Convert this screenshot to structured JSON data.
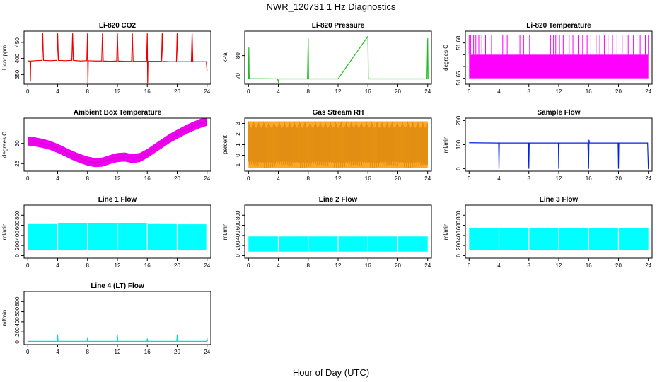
{
  "figure": {
    "title": "NWR_120731  1 Hz Diagnostics",
    "xlabel": "Hour of Day (UTC)"
  },
  "chart_data": [
    {
      "type": "line",
      "title": "Li-820 CO2",
      "ylabel": "Licor ppm",
      "color": "#ee0000",
      "xlim": [
        -0.5,
        24.5
      ],
      "ylim": [
        320,
        485
      ],
      "xticks": [
        0,
        4,
        8,
        12,
        16,
        20,
        24
      ],
      "yticks": [
        350,
        400,
        450
      ],
      "ytick_labels": [
        "350",
        "400",
        "450"
      ],
      "series": [
        {
          "x": [
            0,
            0.3,
            0.35,
            0.4,
            1,
            1.9,
            2,
            2.1,
            3,
            3.9,
            4,
            4.1,
            5,
            5.9,
            6,
            6.1,
            7,
            7.9,
            8,
            8.05,
            8.1,
            9,
            9.9,
            10,
            10.1,
            11,
            11.9,
            12,
            12.1,
            13,
            13.9,
            14,
            14.1,
            15,
            15.9,
            16,
            16.05,
            16.1,
            17,
            17.9,
            18,
            18.1,
            19,
            19.9,
            20,
            20.1,
            21,
            21.9,
            22,
            22.1,
            23,
            23.9,
            24
          ],
          "y": [
            392,
            392,
            328,
            392,
            393,
            394,
            478,
            394,
            393,
            394,
            478,
            394,
            393,
            394,
            478,
            394,
            392,
            393,
            478,
            322,
            393,
            392,
            392,
            478,
            392,
            391,
            392,
            478,
            392,
            391,
            391,
            478,
            391,
            391,
            391,
            478,
            322,
            391,
            391,
            391,
            478,
            391,
            390,
            390,
            478,
            390,
            390,
            390,
            478,
            390,
            390,
            390,
            362
          ]
        }
      ]
    },
    {
      "type": "line",
      "title": "Li-820 Pressure",
      "ylabel": "kPa",
      "color": "#22bb22",
      "xlim": [
        -0.5,
        24.5
      ],
      "ylim": [
        66,
        92
      ],
      "xticks": [
        0,
        4,
        8,
        12,
        16,
        20,
        24
      ],
      "yticks": [
        70,
        80
      ],
      "ytick_labels": [
        "70",
        "80"
      ],
      "series": [
        {
          "x": [
            0,
            0.05,
            0.1,
            0.2,
            1,
            3.9,
            4,
            4.1,
            7.9,
            8,
            8.05,
            8.1,
            12,
            16,
            16.05,
            16.1,
            20,
            23.9,
            24,
            24.05
          ],
          "y": [
            68.5,
            84,
            69,
            68.7,
            68.7,
            68.6,
            67.2,
            68.6,
            68.6,
            88.5,
            68.6,
            68.6,
            68.6,
            89.5,
            68.6,
            68.6,
            68.6,
            68.6,
            88.5,
            68.6
          ]
        }
      ]
    },
    {
      "type": "line",
      "title": "Li-820 Temperature",
      "ylabel": "degrees C",
      "color": "#ff00ff",
      "xlim": [
        -0.5,
        24.5
      ],
      "ylim": [
        51.645,
        51.69
      ],
      "xticks": [
        0,
        4,
        8,
        12,
        16,
        20,
        24
      ],
      "yticks": [
        51.65,
        51.66,
        51.67,
        51.68
      ],
      "ytick_labels": [
        "51.65",
        "",
        "",
        "51.68"
      ],
      "band": [
        51.65,
        51.67
      ],
      "spikes_to": 51.687,
      "series": [
        {
          "x": [
            0,
            0.2,
            0.4,
            0.6,
            0.9,
            1.3,
            1.7,
            2.2,
            3.0,
            4.5,
            5.1,
            6.8,
            7.3,
            8.1,
            10.9,
            11.3,
            11.6,
            12.1,
            12.6,
            13.4,
            13.9,
            14.6,
            15.2,
            15.8,
            16.3,
            17.0,
            17.5,
            18.1,
            18.6,
            19.2,
            19.8,
            20.5,
            21.3,
            22.0,
            22.9,
            23.6,
            24.0
          ],
          "y": [
            51.687,
            51.687,
            51.687,
            51.687,
            51.687,
            51.687,
            51.687,
            51.687,
            51.687,
            51.687,
            51.687,
            51.687,
            51.687,
            51.687,
            51.687,
            51.687,
            51.687,
            51.687,
            51.687,
            51.687,
            51.687,
            51.687,
            51.687,
            51.687,
            51.687,
            51.687,
            51.687,
            51.687,
            51.687,
            51.687,
            51.687,
            51.687,
            51.687,
            51.687,
            51.687,
            51.687,
            51.687
          ]
        }
      ]
    },
    {
      "type": "line",
      "title": "Ambient Box Temperature",
      "ylabel": "degrees C",
      "color": "#ee00ee",
      "xlim": [
        -0.5,
        24.5
      ],
      "ylim": [
        24.5,
        35
      ],
      "xticks": [
        0,
        4,
        8,
        12,
        16,
        20,
        24
      ],
      "yticks": [
        26,
        30
      ],
      "ytick_labels": [
        "26",
        "30"
      ],
      "band_halfwidth": 0.9,
      "series": [
        {
          "x": [
            0,
            1,
            2,
            3,
            4,
            5,
            6,
            7,
            8,
            9,
            10,
            11,
            12,
            13,
            14,
            15,
            16,
            17,
            18,
            19,
            20,
            21,
            22,
            23,
            24
          ],
          "y": [
            30.5,
            30.3,
            30.0,
            29.6,
            29.0,
            28.3,
            27.6,
            27.0,
            26.5,
            26.2,
            26.3,
            26.8,
            27.2,
            27.3,
            27.0,
            27.2,
            28.0,
            29.0,
            30.0,
            31.0,
            31.8,
            32.6,
            33.3,
            33.9,
            34.4
          ]
        }
      ]
    },
    {
      "type": "scatter",
      "title": "Gas Stream RH",
      "ylabel": "percent",
      "color": "#ff9900",
      "xlim": [
        -0.5,
        24.5
      ],
      "ylim": [
        -1.5,
        3.5
      ],
      "xticks": [
        0,
        4,
        8,
        12,
        16,
        20,
        24
      ],
      "yticks": [
        -1,
        0,
        1,
        2,
        3
      ],
      "ytick_labels": [
        "-1",
        "0",
        "1",
        "2",
        "3"
      ],
      "band": [
        -1.2,
        3.2
      ],
      "series": [
        {
          "x": [
            0,
            2,
            4,
            6,
            8,
            10,
            12,
            14,
            16,
            18,
            20,
            22,
            24
          ],
          "y": [
            1.0,
            1.0,
            0.9,
            1.0,
            1.0,
            1.0,
            1.0,
            1.0,
            1.0,
            1.0,
            1.0,
            1.0,
            1.0
          ]
        }
      ]
    },
    {
      "type": "line",
      "title": "Sample Flow",
      "ylabel": "ml/min",
      "color": "#0022dd",
      "xlim": [
        -0.5,
        24.5
      ],
      "ylim": [
        -10,
        210
      ],
      "xticks": [
        0,
        4,
        8,
        12,
        16,
        20,
        24
      ],
      "yticks": [
        0,
        100,
        200
      ],
      "ytick_labels": [
        "0",
        "100",
        "200"
      ],
      "series": [
        {
          "x": [
            0,
            3.95,
            4,
            4.05,
            7.95,
            8,
            8.05,
            11.95,
            12,
            12.05,
            15.9,
            16,
            16.05,
            16.1,
            19.95,
            20,
            20.05,
            23.9,
            24,
            24.05
          ],
          "y": [
            108,
            107,
            0,
            107,
            107,
            0,
            107,
            107,
            0,
            107,
            107,
            0,
            120,
            107,
            107,
            0,
            107,
            107,
            0,
            0
          ]
        }
      ]
    },
    {
      "type": "area",
      "title": "Line 1 Flow",
      "ylabel": "ml/min",
      "color": "#00ffff",
      "xlim": [
        -0.5,
        24.5
      ],
      "ylim": [
        -50,
        1000
      ],
      "xticks": [
        0,
        4,
        8,
        12,
        16,
        20,
        24
      ],
      "yticks": [
        0,
        200,
        400,
        600,
        800
      ],
      "ytick_labels": [
        "0",
        "200",
        "400",
        "600",
        "800"
      ],
      "series": [
        {
          "name": "upper",
          "x": [
            0,
            3.95,
            4.1,
            7.95,
            8.1,
            11.95,
            12.1,
            15.95,
            16.1,
            19.95,
            20.1,
            23.9
          ],
          "y": [
            640,
            640,
            650,
            650,
            650,
            650,
            650,
            650,
            640,
            640,
            620,
            620
          ]
        },
        {
          "name": "lower",
          "x": [
            0,
            23.9
          ],
          "y": [
            110,
            110
          ]
        }
      ]
    },
    {
      "type": "area",
      "title": "Line 2 Flow",
      "ylabel": "ml/min",
      "color": "#00ffff",
      "xlim": [
        -0.5,
        24.5
      ],
      "ylim": [
        -50,
        1000
      ],
      "xticks": [
        0,
        4,
        8,
        12,
        16,
        20,
        24
      ],
      "yticks": [
        0,
        200,
        400,
        600,
        800
      ],
      "ytick_labels": [
        "0",
        "200",
        "400",
        "600",
        "800"
      ],
      "series": [
        {
          "name": "upper",
          "x": [
            0,
            24
          ],
          "y": [
            380,
            380
          ]
        },
        {
          "name": "lower",
          "x": [
            0,
            24
          ],
          "y": [
            80,
            80
          ]
        }
      ]
    },
    {
      "type": "area",
      "title": "Line 3 Flow",
      "ylabel": "ml/min",
      "color": "#00ffff",
      "xlim": [
        -0.5,
        24.5
      ],
      "ylim": [
        -50,
        1000
      ],
      "xticks": [
        0,
        4,
        8,
        12,
        16,
        20,
        24
      ],
      "yticks": [
        0,
        200,
        400,
        600,
        800
      ],
      "ytick_labels": [
        "0",
        "200",
        "400",
        "600",
        "800"
      ],
      "series": [
        {
          "name": "upper",
          "x": [
            0,
            24
          ],
          "y": [
            540,
            540
          ]
        },
        {
          "name": "lower",
          "x": [
            0,
            24
          ],
          "y": [
            110,
            110
          ]
        }
      ]
    },
    {
      "type": "line",
      "title": "Line 4 (LT) Flow",
      "ylabel": "ml/min",
      "color": "#00dddd",
      "xlim": [
        -0.5,
        24.5
      ],
      "ylim": [
        -50,
        1000
      ],
      "xticks": [
        0,
        4,
        8,
        12,
        16,
        20,
        24
      ],
      "yticks": [
        0,
        200,
        400,
        600,
        800
      ],
      "ytick_labels": [
        "0",
        "200",
        "400",
        "600",
        "800"
      ],
      "series": [
        {
          "x": [
            0,
            3.95,
            4,
            4.05,
            7.95,
            8,
            8.05,
            11.95,
            12,
            12.05,
            15.95,
            16,
            16.05,
            19.95,
            20,
            20.05,
            23.95,
            24,
            24.05
          ],
          "y": [
            15,
            15,
            150,
            15,
            15,
            80,
            15,
            15,
            140,
            15,
            15,
            70,
            15,
            15,
            150,
            15,
            15,
            80,
            15
          ]
        }
      ]
    }
  ]
}
